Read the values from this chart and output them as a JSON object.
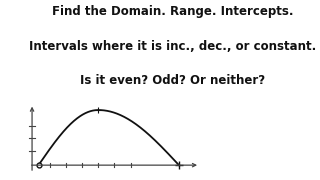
{
  "title_lines": [
    "Find the Domain. Range. Intercepts.",
    "Intervals where it is inc., dec., or constant.",
    "Is it even? Odd? Or neither?"
  ],
  "title_fontsize": 8.5,
  "background_color": "#ffffff",
  "curve_color": "#111111",
  "axis_color": "#444444",
  "curve_x_start": -4.5,
  "curve_x_end": 4.2,
  "curve_peak_x": -0.8,
  "curve_peak_y": 3.5,
  "y_axis_x": -4.9,
  "x_axis_xlim": [
    -5.3,
    5.8
  ],
  "ylim": [
    -0.6,
    4.2
  ],
  "y_ticks": [
    0.9,
    1.7,
    2.5
  ],
  "x_ticks": [
    -3.8,
    -2.8,
    -1.8,
    -0.8,
    0.2,
    1.2
  ]
}
